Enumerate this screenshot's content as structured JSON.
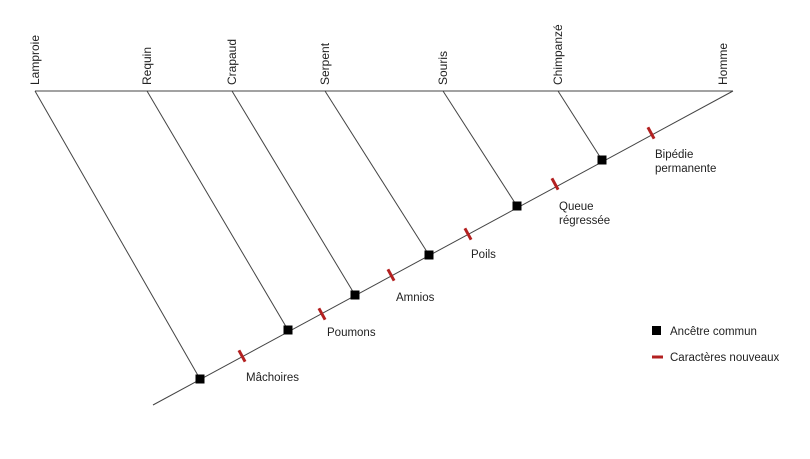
{
  "taxa": [
    "Lamproie",
    "Requin",
    "Crapaud",
    "Serpent",
    "Souris",
    "Chimpanzé",
    "Homme"
  ],
  "traits": [
    {
      "lines": [
        "Mâchoires"
      ]
    },
    {
      "lines": [
        "Poumons"
      ]
    },
    {
      "lines": [
        "Amnios"
      ]
    },
    {
      "lines": [
        "Poils"
      ]
    },
    {
      "lines": [
        "Queue",
        "régressée"
      ]
    },
    {
      "lines": [
        "Bipédie",
        "permanente"
      ]
    }
  ],
  "legend": {
    "ancestor": "Ancêtre commun",
    "new_traits": "Caractères nouveaux"
  },
  "colors": {
    "line": "#444444",
    "ancestor_marker": "#000000",
    "trait_marker": "#b32020"
  }
}
